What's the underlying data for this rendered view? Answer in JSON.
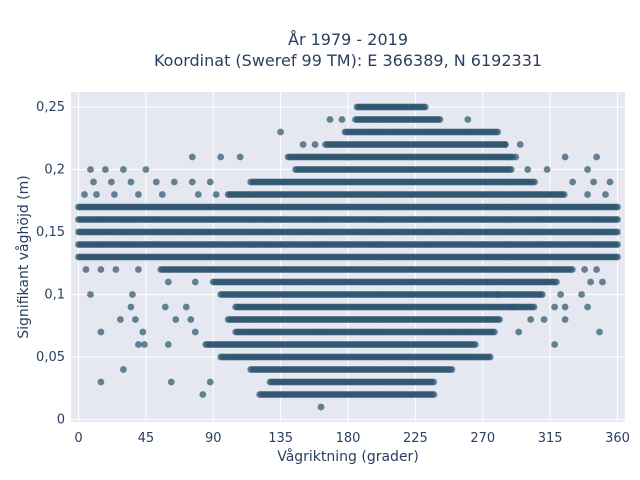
{
  "chart_data": {
    "type": "scatter",
    "title": "År 1979 - 2019",
    "subtitle": "Koordinat (Sweref 99 TM): E 366389, N 6192331",
    "xlabel": "Vågriktning (grader)",
    "ylabel": "Signifikant våghöjd (m)",
    "xlim": [
      -5,
      365
    ],
    "ylim": [
      -0.002,
      0.262
    ],
    "xticks": [
      0,
      45,
      90,
      135,
      180,
      225,
      270,
      315,
      360
    ],
    "xtick_labels": [
      "0",
      "45",
      "90",
      "135",
      "180",
      "225",
      "270",
      "315",
      "360"
    ],
    "yticks": [
      0,
      0.05,
      0.1,
      0.15,
      0.2,
      0.25
    ],
    "ytick_labels": [
      "0",
      "0,05",
      "0,1",
      "0,15",
      "0,2",
      "0,25"
    ],
    "grid": true,
    "legend": "none",
    "marker_color": "#2f5670",
    "background": "#e5e8f0",
    "bands": [
      {
        "y": 0.01,
        "x_min": 162,
        "x_max": 162
      },
      {
        "y": 0.02,
        "x_min": 121,
        "x_max": 238
      },
      {
        "y": 0.03,
        "x_min": 128,
        "x_max": 238
      },
      {
        "y": 0.04,
        "x_min": 115,
        "x_max": 250
      },
      {
        "y": 0.05,
        "x_min": 95,
        "x_max": 275
      },
      {
        "y": 0.06,
        "x_min": 85,
        "x_max": 265
      },
      {
        "y": 0.07,
        "x_min": 105,
        "x_max": 278
      },
      {
        "y": 0.08,
        "x_min": 100,
        "x_max": 282
      },
      {
        "y": 0.09,
        "x_min": 105,
        "x_max": 305
      },
      {
        "y": 0.1,
        "x_min": 95,
        "x_max": 310
      },
      {
        "y": 0.11,
        "x_min": 90,
        "x_max": 320
      },
      {
        "y": 0.12,
        "x_min": 55,
        "x_max": 330
      },
      {
        "y": 0.13,
        "x_min": 0,
        "x_max": 360
      },
      {
        "y": 0.14,
        "x_min": 0,
        "x_max": 360
      },
      {
        "y": 0.15,
        "x_min": 0,
        "x_max": 360
      },
      {
        "y": 0.16,
        "x_min": 0,
        "x_max": 360
      },
      {
        "y": 0.17,
        "x_min": 0,
        "x_max": 360
      },
      {
        "y": 0.18,
        "x_min": 100,
        "x_max": 325
      },
      {
        "y": 0.19,
        "x_min": 115,
        "x_max": 305
      },
      {
        "y": 0.2,
        "x_min": 145,
        "x_max": 290
      },
      {
        "y": 0.21,
        "x_min": 140,
        "x_max": 290
      },
      {
        "y": 0.22,
        "x_min": 165,
        "x_max": 285
      },
      {
        "y": 0.23,
        "x_min": 178,
        "x_max": 280
      },
      {
        "y": 0.24,
        "x_min": 185,
        "x_max": 242
      },
      {
        "y": 0.25,
        "x_min": 186,
        "x_max": 232
      }
    ],
    "points": [
      [
        15,
        0.03
      ],
      [
        30,
        0.04
      ],
      [
        83,
        0.02
      ],
      [
        62,
        0.03
      ],
      [
        88,
        0.03
      ],
      [
        60,
        0.06
      ],
      [
        40,
        0.06
      ],
      [
        44,
        0.06
      ],
      [
        15,
        0.07
      ],
      [
        43,
        0.07
      ],
      [
        78,
        0.07
      ],
      [
        28,
        0.08
      ],
      [
        38,
        0.08
      ],
      [
        65,
        0.08
      ],
      [
        75,
        0.08
      ],
      [
        35,
        0.09
      ],
      [
        58,
        0.09
      ],
      [
        72,
        0.09
      ],
      [
        8,
        0.1
      ],
      [
        36,
        0.1
      ],
      [
        280,
        0.1
      ],
      [
        322,
        0.1
      ],
      [
        336,
        0.1
      ],
      [
        60,
        0.11
      ],
      [
        78,
        0.11
      ],
      [
        290,
        0.09
      ],
      [
        318,
        0.09
      ],
      [
        325,
        0.09
      ],
      [
        340,
        0.09
      ],
      [
        318,
        0.06
      ],
      [
        348,
        0.07
      ],
      [
        294,
        0.07
      ],
      [
        302,
        0.08
      ],
      [
        311,
        0.08
      ],
      [
        325,
        0.08
      ],
      [
        5,
        0.12
      ],
      [
        15,
        0.12
      ],
      [
        25,
        0.12
      ],
      [
        40,
        0.12
      ],
      [
        338,
        0.12
      ],
      [
        346,
        0.12
      ],
      [
        350,
        0.11
      ],
      [
        342,
        0.11
      ],
      [
        8,
        0.2
      ],
      [
        18,
        0.2
      ],
      [
        30,
        0.2
      ],
      [
        45,
        0.2
      ],
      [
        76,
        0.21
      ],
      [
        95,
        0.21
      ],
      [
        108,
        0.21
      ],
      [
        340,
        0.2
      ],
      [
        346,
        0.21
      ],
      [
        325,
        0.21
      ],
      [
        313,
        0.2
      ],
      [
        300,
        0.2
      ],
      [
        10,
        0.19
      ],
      [
        22,
        0.19
      ],
      [
        35,
        0.19
      ],
      [
        52,
        0.19
      ],
      [
        64,
        0.19
      ],
      [
        76,
        0.19
      ],
      [
        88,
        0.19
      ],
      [
        330,
        0.19
      ],
      [
        344,
        0.19
      ],
      [
        355,
        0.19
      ],
      [
        4,
        0.18
      ],
      [
        12,
        0.18
      ],
      [
        24,
        0.18
      ],
      [
        40,
        0.18
      ],
      [
        56,
        0.18
      ],
      [
        80,
        0.18
      ],
      [
        92,
        0.18
      ],
      [
        340,
        0.18
      ],
      [
        352,
        0.18
      ],
      [
        135,
        0.23
      ],
      [
        150,
        0.22
      ],
      [
        158,
        0.22
      ],
      [
        285,
        0.22
      ],
      [
        292,
        0.21
      ],
      [
        295,
        0.22
      ],
      [
        180,
        0.21
      ],
      [
        168,
        0.24
      ],
      [
        176,
        0.24
      ],
      [
        260,
        0.24
      ]
    ]
  }
}
